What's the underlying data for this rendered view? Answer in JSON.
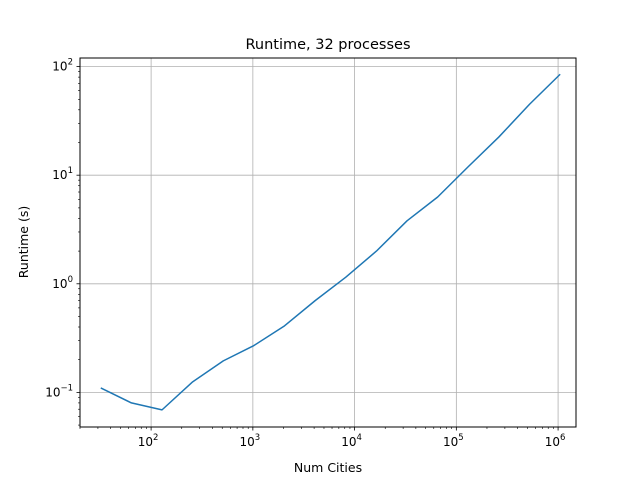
{
  "chart_data": {
    "type": "line",
    "title": "Runtime, 32 processes",
    "xlabel": "Num Cities",
    "ylabel": "Runtime (s)",
    "xscale": "log",
    "yscale": "log",
    "xlim": [
      20,
      1500000
    ],
    "ylim": [
      0.048,
      120
    ],
    "grid": true,
    "x_ticks": [
      {
        "value": 100,
        "base": "10",
        "exp": "2"
      },
      {
        "value": 1000,
        "base": "10",
        "exp": "3"
      },
      {
        "value": 10000,
        "base": "10",
        "exp": "4"
      },
      {
        "value": 100000,
        "base": "10",
        "exp": "5"
      },
      {
        "value": 1000000,
        "base": "10",
        "exp": "6"
      }
    ],
    "y_ticks": [
      {
        "value": 0.1,
        "base": "10",
        "exp": "−1"
      },
      {
        "value": 1,
        "base": "10",
        "exp": "0"
      },
      {
        "value": 10,
        "base": "10",
        "exp": "1"
      },
      {
        "value": 100,
        "base": "10",
        "exp": "2"
      }
    ],
    "series": [
      {
        "color": "#1f77b4",
        "x": [
          32,
          64,
          128,
          256,
          512,
          1024,
          2048,
          4096,
          8192,
          16384,
          32768,
          65536,
          131072,
          262144,
          524288,
          1048576
        ],
        "values": [
          0.11,
          0.08,
          0.069,
          0.125,
          0.195,
          0.27,
          0.41,
          0.7,
          1.15,
          2.0,
          3.8,
          6.3,
          12.0,
          22.5,
          45.0,
          85.0
        ]
      }
    ]
  }
}
